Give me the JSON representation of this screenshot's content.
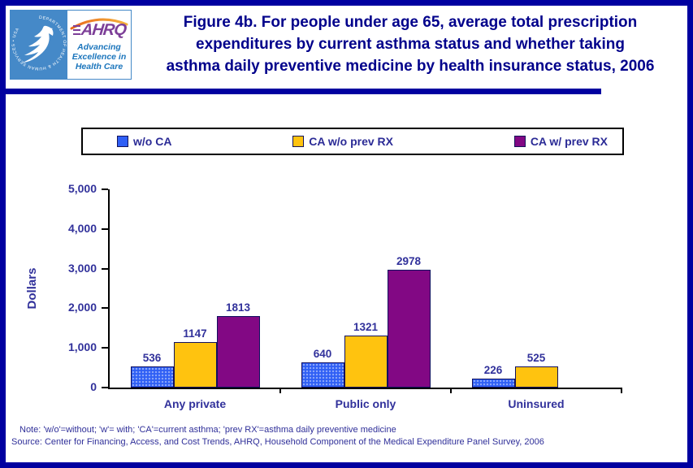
{
  "header": {
    "title_lines": [
      "Figure 4b. For people under age 65, average total prescription",
      "expenditures by current asthma status and whether taking",
      "asthma daily preventive medicine by health insurance status, 2006"
    ]
  },
  "logo": {
    "hhs_ring_text": "DEPARTMENT OF HEALTH & HUMAN SERVICES • USA",
    "acronym": "AHRQ",
    "tagline_lines": [
      "Advancing",
      "Excellence in",
      "Health Care"
    ]
  },
  "chart_data": {
    "type": "bar",
    "title": "Figure 4b. For people under age 65, average total prescription expenditures by current asthma status and whether taking asthma daily preventive medicine by health insurance status, 2006",
    "categories": [
      "Any private",
      "Public only",
      "Uninsured"
    ],
    "series": [
      {
        "name": "w/o CA",
        "color": "#2F5FF5",
        "values": [
          536,
          640,
          226
        ]
      },
      {
        "name": "CA w/o prev RX",
        "color": "#FFC30F",
        "values": [
          1147,
          1321,
          525
        ]
      },
      {
        "name": "CA w/ prev RX",
        "color": "#820884",
        "values": [
          1813,
          2978,
          null
        ]
      }
    ],
    "ylabel": "Dollars",
    "xlabel": "",
    "ylim": [
      0,
      5000
    ],
    "yticks": [
      0,
      1000,
      2000,
      3000,
      4000,
      5000
    ],
    "grid": false,
    "data_labels": true,
    "legend_position": "top"
  },
  "notes": {
    "note": "Note: 'w/o'=without; 'w'= with; 'CA'=current asthma; 'prev RX'=asthma daily preventive medicine",
    "source": "Source: Center for Financing, Access, and Cost Trends, AHRQ, Household Component of the Medical Expenditure Panel Survey, 2006"
  }
}
